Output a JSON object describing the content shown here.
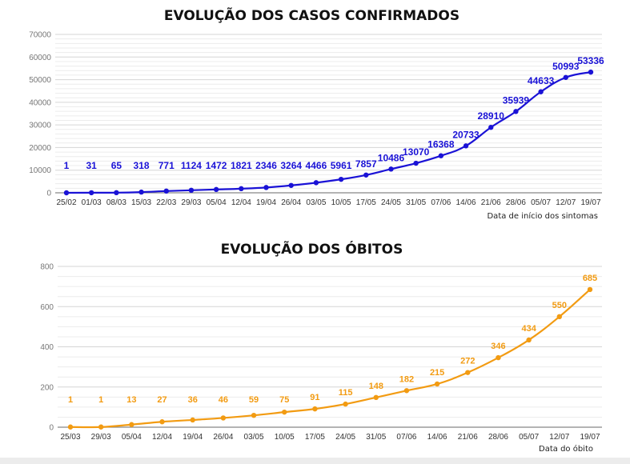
{
  "chart_data": [
    {
      "type": "line",
      "title": "EVOLUÇÃO DOS CASOS CONFIRMADOS",
      "xlabel": "Data de início dos sintomas",
      "ylabel": "",
      "ylim": [
        0,
        70000
      ],
      "yticks": [
        0,
        10000,
        20000,
        30000,
        40000,
        50000,
        60000,
        70000
      ],
      "grid": true,
      "color": "#1a12d6",
      "categories": [
        "25/02",
        "01/03",
        "08/03",
        "15/03",
        "22/03",
        "29/03",
        "05/04",
        "12/04",
        "19/04",
        "26/04",
        "03/05",
        "10/05",
        "17/05",
        "24/05",
        "31/05",
        "07/06",
        "14/06",
        "21/06",
        "28/06",
        "05/07",
        "12/07",
        "19/07"
      ],
      "values": [
        1,
        31,
        65,
        318,
        771,
        1124,
        1472,
        1821,
        2346,
        3264,
        4466,
        5961,
        7857,
        10486,
        13070,
        16368,
        20733,
        28910,
        35939,
        44633,
        50993,
        53336
      ]
    },
    {
      "type": "line",
      "title": "EVOLUÇÃO DOS ÓBITOS",
      "xlabel": "Data do óbito",
      "ylabel": "",
      "ylim": [
        0,
        800
      ],
      "yticks": [
        0,
        200,
        400,
        600,
        800
      ],
      "grid": true,
      "color": "#f29b12",
      "categories": [
        "25/03",
        "29/03",
        "05/04",
        "12/04",
        "19/04",
        "26/04",
        "03/05",
        "10/05",
        "17/05",
        "24/05",
        "31/05",
        "07/06",
        "14/06",
        "21/06",
        "28/06",
        "05/07",
        "12/07",
        "19/07"
      ],
      "values": [
        1,
        1,
        13,
        27,
        36,
        46,
        59,
        75,
        91,
        115,
        148,
        182,
        215,
        272,
        346,
        434,
        550,
        685
      ]
    }
  ]
}
